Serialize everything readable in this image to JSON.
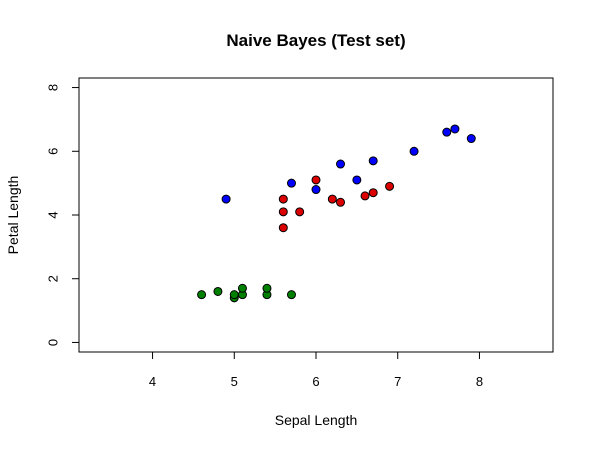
{
  "chart_data": {
    "type": "scatter",
    "title": "Naive Bayes (Test set)",
    "xlabel": "Sepal Length",
    "ylabel": "Petal Length",
    "xlim": [
      3.1,
      8.9
    ],
    "ylim": [
      -0.3,
      8.3
    ],
    "x_ticks": [
      4,
      5,
      6,
      7,
      8
    ],
    "y_ticks": [
      0,
      2,
      4,
      6,
      8
    ],
    "grid": false,
    "series": [
      {
        "color": "#008000",
        "points": [
          [
            4.6,
            1.5
          ],
          [
            4.8,
            1.6
          ],
          [
            5.0,
            1.4
          ],
          [
            5.0,
            1.5
          ],
          [
            5.1,
            1.5
          ],
          [
            5.1,
            1.7
          ],
          [
            5.4,
            1.5
          ],
          [
            5.4,
            1.7
          ],
          [
            5.7,
            1.5
          ]
        ]
      },
      {
        "color": "#dd0000",
        "points": [
          [
            5.6,
            3.6
          ],
          [
            5.6,
            4.1
          ],
          [
            5.6,
            4.5
          ],
          [
            5.8,
            4.1
          ],
          [
            6.0,
            5.1
          ],
          [
            6.2,
            4.5
          ],
          [
            6.3,
            4.4
          ],
          [
            6.6,
            4.6
          ],
          [
            6.7,
            4.7
          ],
          [
            6.9,
            4.9
          ]
        ]
      },
      {
        "color": "#0000ff",
        "points": [
          [
            4.9,
            4.5
          ],
          [
            5.7,
            5.0
          ],
          [
            6.0,
            4.8
          ],
          [
            6.3,
            5.6
          ],
          [
            6.5,
            5.1
          ],
          [
            6.7,
            5.7
          ],
          [
            7.2,
            6.0
          ],
          [
            7.6,
            6.6
          ],
          [
            7.7,
            6.7
          ],
          [
            7.9,
            6.4
          ]
        ]
      }
    ]
  }
}
